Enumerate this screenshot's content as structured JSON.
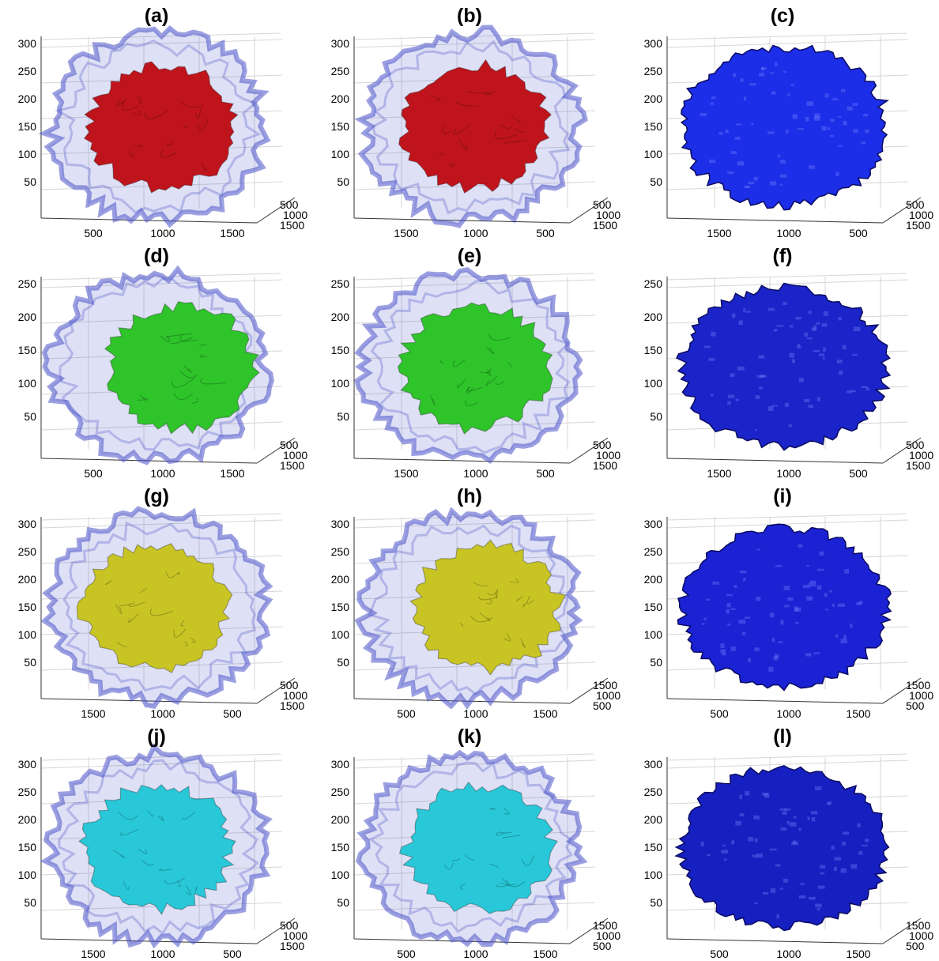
{
  "figure": {
    "panels": [
      {
        "label": "(a)",
        "object_color": "#c0141c",
        "halo_color": "#4a52c8",
        "mode": "nested",
        "z_ticks": [
          "300",
          "250",
          "200",
          "150",
          "100",
          "50"
        ],
        "x_ticks": [
          "500",
          "1000",
          "1500"
        ],
        "y_ticks": [
          "500",
          "1000",
          "1500"
        ]
      },
      {
        "label": "(b)",
        "object_color": "#c0141c",
        "halo_color": "#4a52c8",
        "mode": "nested",
        "z_ticks": [
          "300",
          "250",
          "200",
          "150",
          "100",
          "50"
        ],
        "x_ticks": [
          "1500",
          "1000",
          "500"
        ],
        "y_ticks": [
          "500",
          "1000",
          "1500"
        ]
      },
      {
        "label": "(c)",
        "object_color": "#1c2ee8",
        "halo_color": "#1c2ee8",
        "mode": "solid",
        "z_ticks": [
          "300",
          "250",
          "200",
          "150",
          "100",
          "50"
        ],
        "x_ticks": [
          "1500",
          "1000",
          "500"
        ],
        "y_ticks": [
          "500",
          "1000",
          "1500"
        ]
      },
      {
        "label": "(d)",
        "object_color": "#2ec42a",
        "halo_color": "#4a52c8",
        "mode": "nested",
        "z_ticks": [
          "250",
          "200",
          "150",
          "100",
          "50"
        ],
        "x_ticks": [
          "500",
          "1000",
          "1500"
        ],
        "y_ticks": [
          "500",
          "1000",
          "1500"
        ]
      },
      {
        "label": "(e)",
        "object_color": "#2ec42a",
        "halo_color": "#4a52c8",
        "mode": "nested",
        "z_ticks": [
          "250",
          "200",
          "150",
          "100",
          "50"
        ],
        "x_ticks": [
          "1500",
          "1000",
          "500"
        ],
        "y_ticks": [
          "500",
          "1000",
          "1500"
        ]
      },
      {
        "label": "(f)",
        "object_color": "#1a24c8",
        "halo_color": "#1a24c8",
        "mode": "solid",
        "z_ticks": [
          "250",
          "200",
          "150",
          "100",
          "50"
        ],
        "x_ticks": [
          "1500",
          "1000",
          "500"
        ],
        "y_ticks": [
          "500",
          "1000",
          "1500"
        ]
      },
      {
        "label": "(g)",
        "object_color": "#c8c424",
        "halo_color": "#4a52c8",
        "mode": "nested",
        "z_ticks": [
          "300",
          "250",
          "200",
          "150",
          "100",
          "50"
        ],
        "x_ticks": [
          "1500",
          "1000",
          "500"
        ],
        "y_ticks": [
          "500",
          "1000",
          "1500"
        ]
      },
      {
        "label": "(h)",
        "object_color": "#c8c424",
        "halo_color": "#4a52c8",
        "mode": "nested",
        "z_ticks": [
          "300",
          "250",
          "200",
          "150",
          "100",
          "50"
        ],
        "x_ticks": [
          "500",
          "1000",
          "1500"
        ],
        "y_ticks": [
          "1500",
          "1000",
          "500"
        ]
      },
      {
        "label": "(i)",
        "object_color": "#1a22d4",
        "halo_color": "#1a22d4",
        "mode": "solid",
        "z_ticks": [
          "300",
          "250",
          "200",
          "150",
          "100",
          "50"
        ],
        "x_ticks": [
          "500",
          "1000",
          "1500"
        ],
        "y_ticks": [
          "1500",
          "1000",
          "500"
        ]
      },
      {
        "label": "(j)",
        "object_color": "#28c8d8",
        "halo_color": "#4a52c8",
        "mode": "nested",
        "z_ticks": [
          "300",
          "250",
          "200",
          "150",
          "100",
          "50"
        ],
        "x_ticks": [
          "1500",
          "1000",
          "500"
        ],
        "y_ticks": [
          "500",
          "1000",
          "1500"
        ]
      },
      {
        "label": "(k)",
        "object_color": "#28c8d8",
        "halo_color": "#4a52c8",
        "mode": "nested",
        "z_ticks": [
          "300",
          "250",
          "200",
          "150",
          "100",
          "50"
        ],
        "x_ticks": [
          "500",
          "1000",
          "1500"
        ],
        "y_ticks": [
          "1500",
          "1000",
          "500"
        ]
      },
      {
        "label": "(l)",
        "object_color": "#1620c0",
        "halo_color": "#1620c0",
        "mode": "solid",
        "z_ticks": [
          "300",
          "250",
          "200",
          "150",
          "100",
          "50"
        ],
        "x_ticks": [
          "500",
          "1000",
          "1500"
        ],
        "y_ticks": [
          "1500",
          "1000",
          "500"
        ]
      }
    ]
  }
}
